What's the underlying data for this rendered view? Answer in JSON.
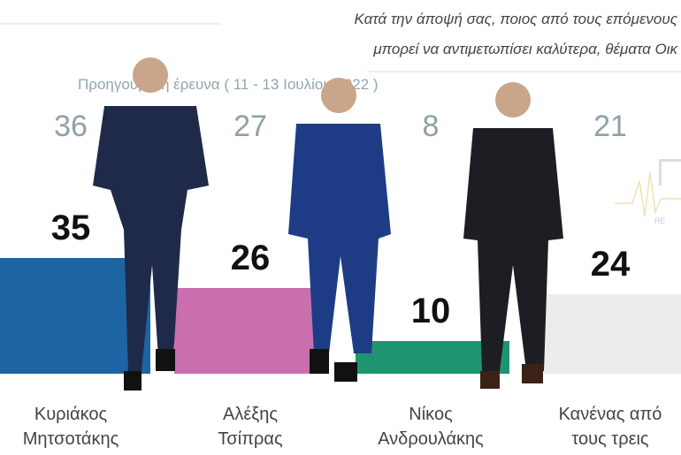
{
  "chart_data": {
    "type": "bar",
    "title": "Κατά την άποψή σας, ποιος  από τους επόμενους μπορεί να αντιμετωπίσει καλύτερα, θέματα Οικ",
    "title_lines": [
      "Κατά την άποψή σας, ποιος  από τους επόμενους",
      "μπορεί να αντιμετωπίσει καλύτερα, θέματα Οικ"
    ],
    "previous_label": "Προηγούμενη έρευνα ( 11 - 13 Ιουλίου 2022 )",
    "categories": [
      "Κυριάκος Μητσοτάκης",
      "Αλέξης Τσίπρας",
      "Νίκος Ανδρουλάκης",
      "Κανένας από τους τρεις"
    ],
    "category_lines": [
      [
        "Κυριάκος",
        "Μητσοτάκης"
      ],
      [
        "Αλέξης",
        "Τσίπρας"
      ],
      [
        "Νίκος",
        "Ανδρουλάκης"
      ],
      [
        "Κανένας από",
        "τους τρεις"
      ]
    ],
    "series": [
      {
        "values": [
          35,
          26,
          10,
          24
        ]
      },
      {
        "values": [
          36,
          27,
          8,
          21
        ]
      }
    ],
    "current": [
      35,
      26,
      10,
      24
    ],
    "previous": [
      36,
      27,
      8,
      21
    ],
    "colors": [
      "#1d64a3",
      "#c96fae",
      "#1e9470",
      "#ececec"
    ],
    "ylim": [
      0,
      35
    ],
    "grid": false,
    "legend": "none"
  }
}
